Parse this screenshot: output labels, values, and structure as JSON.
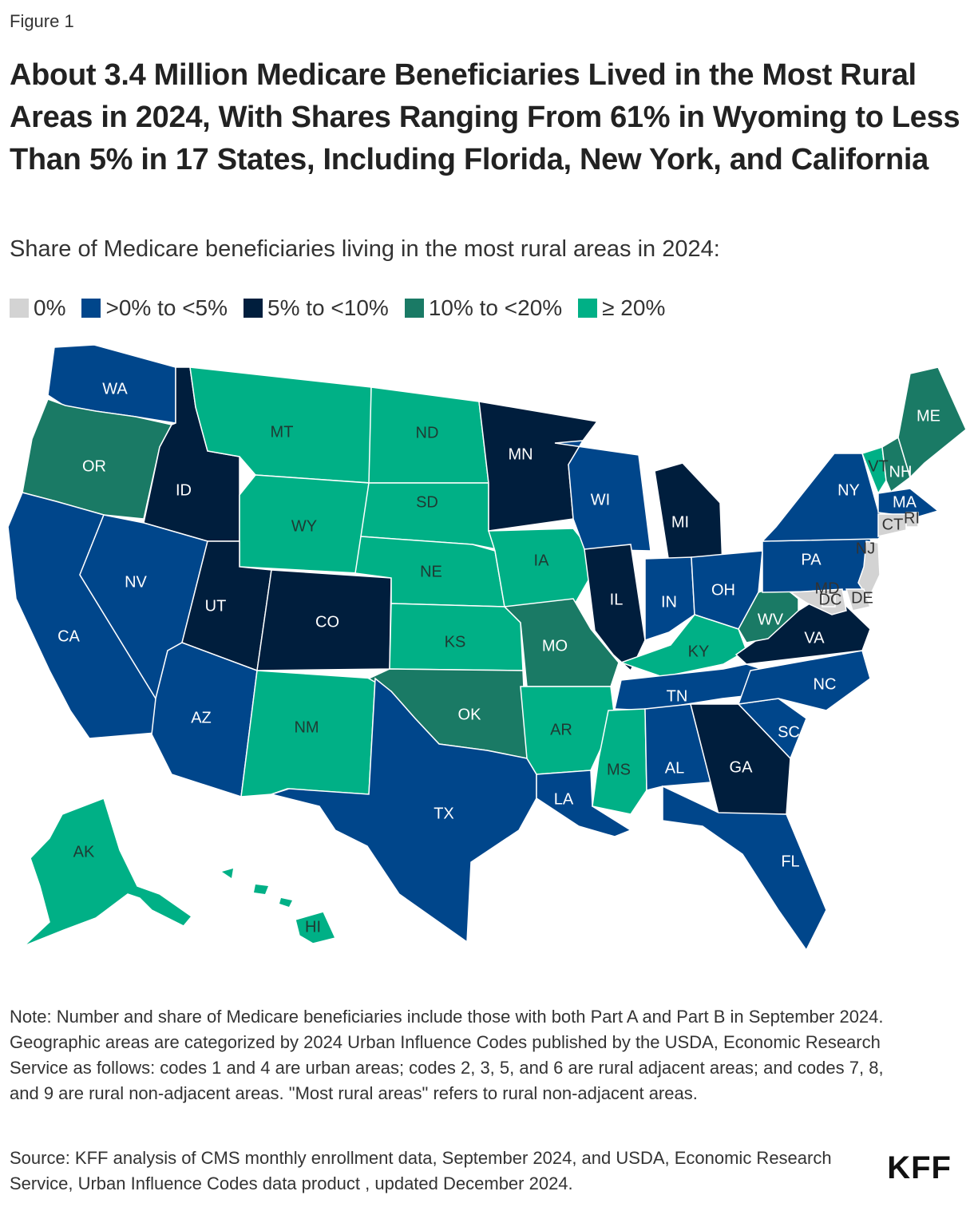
{
  "figure_label": "Figure 1",
  "title": "About 3.4 Million Medicare Beneficiaries Lived in the Most Rural Areas in 2024, With Shares Ranging From 61% in Wyoming to Less Than 5% in 17 States, Including Florida, New York, and California",
  "subtitle": "Share of Medicare beneficiaries living in the most rural areas in 2024:",
  "legend": [
    {
      "label": "0%",
      "color": "#d3d3d3"
    },
    {
      "label": ">0% to <5%",
      "color": "#00468b"
    },
    {
      "label": "5% to <10%",
      "color": "#001e3d"
    },
    {
      "label": "10% to <20%",
      "color": "#1a7a65"
    },
    {
      "label": "≥ 20%",
      "color": "#00b086"
    }
  ],
  "chart_data": {
    "type": "choropleth",
    "categories": [
      "0%",
      ">0% to <5%",
      "5% to <10%",
      "10% to <20%",
      "≥ 20%"
    ],
    "states": [
      {
        "abbr": "WA",
        "category": 1
      },
      {
        "abbr": "OR",
        "category": 3
      },
      {
        "abbr": "CA",
        "category": 1
      },
      {
        "abbr": "ID",
        "category": 2
      },
      {
        "abbr": "NV",
        "category": 1
      },
      {
        "abbr": "MT",
        "category": 4
      },
      {
        "abbr": "WY",
        "category": 4
      },
      {
        "abbr": "UT",
        "category": 2
      },
      {
        "abbr": "CO",
        "category": 2
      },
      {
        "abbr": "AZ",
        "category": 1
      },
      {
        "abbr": "NM",
        "category": 4
      },
      {
        "abbr": "ND",
        "category": 4
      },
      {
        "abbr": "SD",
        "category": 4
      },
      {
        "abbr": "NE",
        "category": 4
      },
      {
        "abbr": "KS",
        "category": 4
      },
      {
        "abbr": "OK",
        "category": 3
      },
      {
        "abbr": "TX",
        "category": 1
      },
      {
        "abbr": "MN",
        "category": 2
      },
      {
        "abbr": "IA",
        "category": 4
      },
      {
        "abbr": "MO",
        "category": 3
      },
      {
        "abbr": "AR",
        "category": 4
      },
      {
        "abbr": "LA",
        "category": 1
      },
      {
        "abbr": "WI",
        "category": 1
      },
      {
        "abbr": "IL",
        "category": 2
      },
      {
        "abbr": "MI",
        "category": 2
      },
      {
        "abbr": "IN",
        "category": 1
      },
      {
        "abbr": "OH",
        "category": 1
      },
      {
        "abbr": "KY",
        "category": 4
      },
      {
        "abbr": "TN",
        "category": 1
      },
      {
        "abbr": "MS",
        "category": 4
      },
      {
        "abbr": "AL",
        "category": 1
      },
      {
        "abbr": "GA",
        "category": 2
      },
      {
        "abbr": "FL",
        "category": 1
      },
      {
        "abbr": "SC",
        "category": 1
      },
      {
        "abbr": "NC",
        "category": 1
      },
      {
        "abbr": "VA",
        "category": 2
      },
      {
        "abbr": "WV",
        "category": 3
      },
      {
        "abbr": "PA",
        "category": 1
      },
      {
        "abbr": "NY",
        "category": 1
      },
      {
        "abbr": "VT",
        "category": 4
      },
      {
        "abbr": "NH",
        "category": 3
      },
      {
        "abbr": "ME",
        "category": 3
      },
      {
        "abbr": "MA",
        "category": 1
      },
      {
        "abbr": "RI",
        "category": 0
      },
      {
        "abbr": "CT",
        "category": 0
      },
      {
        "abbr": "NJ",
        "category": 0
      },
      {
        "abbr": "DE",
        "category": 0
      },
      {
        "abbr": "MD",
        "category": 0
      },
      {
        "abbr": "DC",
        "category": 0
      },
      {
        "abbr": "AK",
        "category": 4
      },
      {
        "abbr": "HI",
        "category": 4
      }
    ]
  },
  "note": "Note: Number and share of Medicare beneficiaries include those with both Part A and Part B in September 2024. Geographic areas are categorized by 2024 Urban Influence Codes published by the USDA, Economic Research Service as follows: codes 1 and 4 are urban areas; codes 2, 3, 5, and 6 are rural adjacent areas; and codes 7, 8, and 9 are rural non-adjacent areas. \"Most rural areas\" refers to rural non-adjacent areas.",
  "source": "Source: KFF analysis of CMS monthly enrollment data, September 2024, and USDA, Economic Research Service, Urban Influence Codes data product , updated December 2024.",
  "logo": "KFF"
}
